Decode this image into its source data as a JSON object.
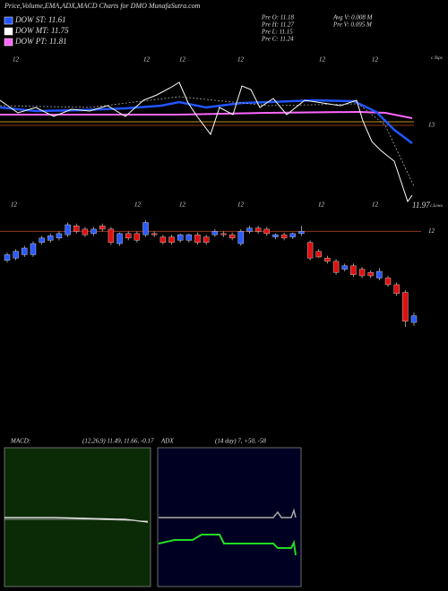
{
  "header": {
    "title": "Price,Volume,EMA,ADX,MACD Charts for DMO MunafaSutra.com"
  },
  "legend": [
    {
      "label": "DOW ST: 11.61",
      "color": "#2255ff"
    },
    {
      "label": "DOW MT: 11.75",
      "color": "#ffffff"
    },
    {
      "label": "DOW PT: 11.81",
      "color": "#ff66ff"
    }
  ],
  "info": [
    "Pre   O: 11.18",
    "Pre   H: 11.27",
    "Pre   L: 11.15",
    "Pre   C: 11.24",
    "Avg V: 0.008  M",
    "Pre   V: 0.095  M"
  ],
  "ema_panel": {
    "tops_label": "c.Tops",
    "lows_label": "c.Lows",
    "level_label": "13",
    "last_label": "11.97",
    "top_markers": [
      "12",
      "12",
      "12",
      "12",
      "12",
      "12"
    ],
    "bottom_markers": [
      "12",
      "12",
      "12",
      "12",
      "12",
      "12"
    ]
  },
  "price_panel": {
    "ylim": [
      11.1,
      12.1
    ],
    "yticks": [
      12
    ],
    "candles": [
      [
        11.74,
        11.81,
        11.72,
        11.79
      ],
      [
        11.76,
        11.84,
        11.74,
        11.82
      ],
      [
        11.79,
        11.87,
        11.77,
        11.85
      ],
      [
        11.79,
        11.91,
        11.77,
        11.89
      ],
      [
        11.9,
        11.96,
        11.88,
        11.94
      ],
      [
        11.92,
        11.98,
        11.9,
        11.96
      ],
      [
        11.94,
        12.0,
        11.92,
        11.98
      ],
      [
        11.97,
        12.08,
        11.95,
        12.06
      ],
      [
        12.05,
        12.07,
        11.98,
        12.0
      ],
      [
        12.02,
        12.04,
        11.95,
        11.97
      ],
      [
        11.98,
        12.04,
        11.96,
        12.02
      ],
      [
        12.05,
        12.07,
        12.0,
        12.02
      ],
      [
        12.02,
        12.04,
        11.88,
        11.9
      ],
      [
        11.89,
        11.99,
        11.87,
        11.98
      ],
      [
        11.98,
        12.0,
        11.92,
        11.94
      ],
      [
        11.98,
        12.0,
        11.9,
        11.92
      ],
      [
        11.97,
        12.1,
        11.95,
        12.08
      ],
      [
        11.98,
        12.0,
        11.95,
        11.97
      ],
      [
        11.95,
        11.97,
        11.88,
        11.9
      ],
      [
        11.95,
        11.97,
        11.88,
        11.9
      ],
      [
        11.92,
        11.98,
        11.9,
        11.97
      ],
      [
        11.92,
        11.98,
        11.9,
        11.97
      ],
      [
        11.97,
        11.99,
        11.88,
        11.9
      ],
      [
        11.95,
        11.97,
        11.88,
        11.9
      ],
      [
        11.97,
        12.02,
        11.95,
        12.0
      ],
      [
        11.98,
        12.0,
        11.95,
        11.97
      ],
      [
        11.97,
        11.99,
        11.92,
        11.94
      ],
      [
        11.89,
        12.02,
        11.87,
        12.0
      ],
      [
        12.0,
        12.05,
        11.98,
        12.03
      ],
      [
        12.03,
        12.05,
        11.98,
        12.0
      ],
      [
        12.02,
        12.04,
        11.96,
        11.98
      ],
      [
        11.95,
        11.98,
        11.93,
        11.97
      ],
      [
        11.97,
        11.99,
        11.92,
        11.94
      ],
      [
        11.95,
        11.99,
        11.93,
        11.98
      ],
      [
        11.98,
        12.05,
        11.96,
        12.0
      ],
      [
        11.9,
        11.92,
        11.74,
        11.76
      ],
      [
        11.82,
        11.84,
        11.76,
        11.77
      ],
      [
        11.76,
        11.78,
        11.71,
        11.73
      ],
      [
        11.73,
        11.75,
        11.61,
        11.63
      ],
      [
        11.66,
        11.71,
        11.64,
        11.69
      ],
      [
        11.69,
        11.71,
        11.59,
        11.61
      ],
      [
        11.66,
        11.68,
        11.58,
        11.6
      ],
      [
        11.63,
        11.65,
        11.58,
        11.6
      ],
      [
        11.58,
        11.67,
        11.56,
        11.64
      ],
      [
        11.58,
        11.6,
        11.5,
        11.52
      ],
      [
        11.52,
        11.54,
        11.42,
        11.44
      ],
      [
        11.45,
        11.47,
        11.14,
        11.19
      ],
      [
        11.18,
        11.27,
        11.15,
        11.24
      ]
    ]
  },
  "macd": {
    "label": "MACD:",
    "values": "(12,26,9) 11.49, 11.66, -0.17"
  },
  "adx": {
    "label": "ADX",
    "values": "(14  day) 7, +50, -58"
  }
}
